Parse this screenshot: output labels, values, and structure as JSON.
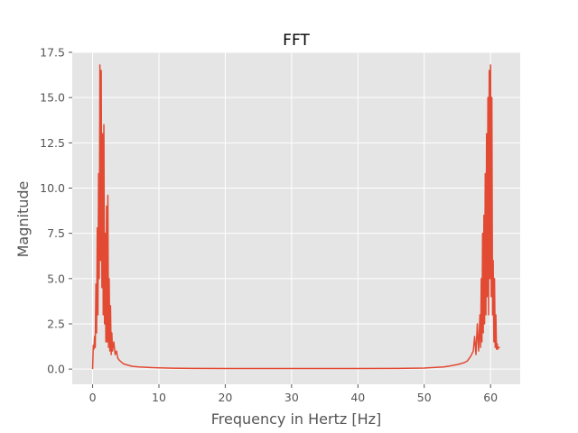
{
  "chart_data": {
    "type": "line",
    "title": "FFT",
    "xlabel": "Frequency in Hertz [Hz]",
    "ylabel": "Magnitude",
    "xlim": [
      -3.07,
      64.47
    ],
    "ylim": [
      -0.84,
      17.5
    ],
    "grid": true,
    "style": "ggplot",
    "xticks": [
      0,
      10,
      20,
      30,
      40,
      50,
      60
    ],
    "xtick_labels": [
      "0",
      "10",
      "20",
      "30",
      "40",
      "50",
      "60"
    ],
    "yticks": [
      0.0,
      2.5,
      5.0,
      7.5,
      10.0,
      12.5,
      15.0,
      17.5
    ],
    "ytick_labels": [
      "0.0",
      "2.5",
      "5.0",
      "7.5",
      "10.0",
      "12.5",
      "15.0",
      "17.5"
    ],
    "colors": {
      "background": "#e5e5e5",
      "grid": "#ffffff",
      "line": "#e24a33",
      "tick": "#555555"
    },
    "series": [
      {
        "x": [
          0.0,
          0.1,
          0.2,
          0.3,
          0.4,
          0.5,
          0.6,
          0.7,
          0.8,
          0.9,
          1.0,
          1.1,
          1.2,
          1.3,
          1.4,
          1.5,
          1.6,
          1.7,
          1.8,
          1.9,
          2.0,
          2.1,
          2.2,
          2.3,
          2.4,
          2.5,
          2.6,
          2.7,
          2.8,
          2.9,
          3.0,
          3.2,
          3.4,
          3.6,
          3.8,
          4.0,
          4.3,
          4.6,
          5.0,
          5.5,
          6.0,
          7.0,
          8.0,
          9.0,
          10.0,
          12.0,
          15.0,
          20.0,
          30.0,
          40.0,
          46.0,
          50.0,
          52.0,
          53.0,
          54.0,
          55.0,
          55.5,
          56.0,
          56.5,
          57.0,
          57.4,
          57.6,
          57.8,
          58.0,
          58.2,
          58.4,
          58.5,
          58.6,
          58.7,
          58.8,
          58.9,
          59.0,
          59.1,
          59.2,
          59.3,
          59.4,
          59.5,
          59.6,
          59.7,
          59.8,
          59.9,
          60.0,
          60.1,
          60.2,
          60.3,
          60.4,
          60.5,
          60.6,
          60.7,
          60.8,
          60.9,
          61.0,
          61.1,
          61.2,
          61.3,
          61.4
        ],
        "y": [
          0.0,
          1.3,
          1.1,
          1.8,
          1.2,
          4.7,
          2.0,
          7.8,
          3.0,
          10.8,
          5.0,
          16.8,
          6.0,
          16.5,
          4.5,
          13.0,
          3.0,
          13.5,
          2.5,
          7.5,
          1.5,
          9.0,
          1.5,
          9.6,
          1.2,
          5.0,
          1.0,
          3.5,
          0.8,
          2.0,
          1.0,
          1.5,
          0.8,
          1.0,
          0.6,
          0.5,
          0.4,
          0.3,
          0.25,
          0.2,
          0.15,
          0.12,
          0.1,
          0.08,
          0.07,
          0.05,
          0.04,
          0.03,
          0.03,
          0.03,
          0.04,
          0.06,
          0.1,
          0.12,
          0.18,
          0.25,
          0.3,
          0.35,
          0.45,
          0.7,
          1.0,
          1.8,
          0.8,
          2.5,
          1.0,
          3.0,
          1.2,
          5.0,
          1.5,
          7.5,
          2.0,
          8.5,
          2.5,
          10.8,
          3.0,
          13.0,
          4.0,
          15.0,
          3.0,
          16.5,
          5.0,
          16.8,
          4.0,
          15.0,
          3.0,
          6.0,
          1.5,
          5.0,
          1.2,
          3.0,
          1.1,
          1.4,
          1.1,
          1.2,
          1.2,
          1.2
        ]
      }
    ]
  }
}
